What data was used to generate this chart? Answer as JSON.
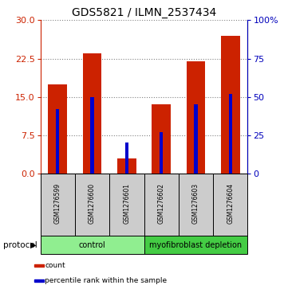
{
  "title": "GDS5821 / ILMN_2537434",
  "samples": [
    "GSM1276599",
    "GSM1276600",
    "GSM1276601",
    "GSM1276602",
    "GSM1276603",
    "GSM1276604"
  ],
  "count_values": [
    17.5,
    23.5,
    3.0,
    13.5,
    22.0,
    27.0
  ],
  "percentile_values": [
    42,
    50,
    20,
    27,
    45,
    52
  ],
  "left_ylim": [
    0,
    30
  ],
  "right_ylim": [
    0,
    100
  ],
  "left_yticks": [
    0,
    7.5,
    15,
    22.5,
    30
  ],
  "right_yticks": [
    0,
    25,
    50,
    75,
    100
  ],
  "right_yticklabels": [
    "0",
    "25",
    "50",
    "75",
    "100%"
  ],
  "bar_color_red": "#cc2200",
  "bar_color_blue": "#0000cc",
  "red_bar_width": 0.55,
  "blue_bar_width": 0.1,
  "groups": [
    {
      "label": "control",
      "start": 0,
      "end": 3,
      "color": "#90ee90"
    },
    {
      "label": "myofibroblast depletion",
      "start": 3,
      "end": 6,
      "color": "#44cc44"
    }
  ],
  "protocol_label": "protocol",
  "legend_items": [
    {
      "label": "count",
      "color": "#cc2200"
    },
    {
      "label": "percentile rank within the sample",
      "color": "#0000cc"
    }
  ],
  "title_fontsize": 10,
  "axis_label_color_left": "#cc2200",
  "axis_label_color_right": "#0000bb",
  "sample_box_color": "#cccccc",
  "sample_fontsize": 5.5,
  "ytick_fontsize": 8
}
